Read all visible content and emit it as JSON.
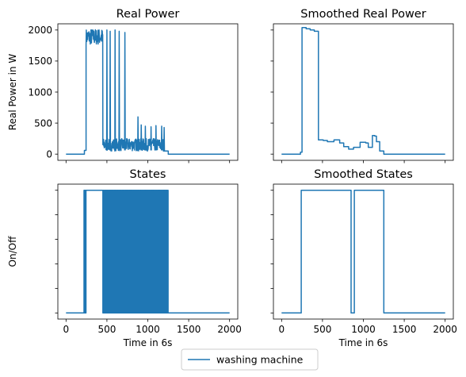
{
  "legend": {
    "label": "washing machine",
    "position": "bottom-center",
    "color": "#1f77b4"
  },
  "chart_data": [
    {
      "id": "real_power",
      "type": "line",
      "title": "Real Power",
      "xlabel": "",
      "ylabel": "Real Power in W",
      "xlim": [
        -100,
        2100
      ],
      "ylim": [
        -100,
        2100
      ],
      "xticks": [
        0,
        500,
        1000,
        1500,
        2000
      ],
      "yticks": [
        0,
        500,
        1000,
        1500,
        2000
      ],
      "ytick_labels": [
        "0",
        "500",
        "1000",
        "1500",
        "2000"
      ],
      "xtick_labels_visible": false,
      "ytick_labels_visible": true,
      "series": [
        {
          "name": "washing machine",
          "color": "#1f77b4",
          "regions": [
            {
              "x": [
                0,
                225
              ],
              "level": 0
            },
            {
              "x": [
                225,
                245
              ],
              "level": 60
            },
            {
              "x": [
                245,
                450
              ],
              "pattern": "noise",
              "min": 1760,
              "max": 2020
            },
            {
              "x": [
                450,
                1200
              ],
              "pattern": "noise",
              "min": 50,
              "max": 250
            },
            {
              "x": [
                1200,
                1250
              ],
              "level": 50
            },
            {
              "x": [
                1250,
                2000
              ],
              "level": 0
            }
          ],
          "spikes": [
            {
              "x": 500,
              "y": 2000
            },
            {
              "x": 540,
              "y": 1980
            },
            {
              "x": 600,
              "y": 2000
            },
            {
              "x": 650,
              "y": 1980
            },
            {
              "x": 720,
              "y": 1960
            },
            {
              "x": 880,
              "y": 600
            },
            {
              "x": 920,
              "y": 470
            },
            {
              "x": 970,
              "y": 450
            },
            {
              "x": 1040,
              "y": 440
            },
            {
              "x": 1100,
              "y": 460
            },
            {
              "x": 1170,
              "y": 450
            },
            {
              "x": 1200,
              "y": 430
            }
          ]
        }
      ]
    },
    {
      "id": "smoothed_real_power",
      "type": "line",
      "title": "Smoothed Real Power",
      "xlabel": "",
      "ylabel": "",
      "xlim": [
        -100,
        2100
      ],
      "ylim": [
        -100,
        2100
      ],
      "xticks": [
        0,
        500,
        1000,
        1500,
        2000
      ],
      "yticks": [
        0,
        500,
        1000,
        1500,
        2000
      ],
      "xtick_labels_visible": false,
      "ytick_labels_visible": false,
      "series": [
        {
          "name": "washing machine",
          "color": "#1f77b4",
          "x": [
            0,
            230,
            230,
            250,
            250,
            300,
            300,
            350,
            350,
            400,
            400,
            450,
            450,
            510,
            510,
            560,
            560,
            640,
            640,
            710,
            710,
            760,
            760,
            820,
            820,
            880,
            880,
            960,
            960,
            1030,
            1030,
            1060,
            1060,
            1110,
            1110,
            1140,
            1140,
            1160,
            1160,
            1200,
            1200,
            1250,
            1250,
            2000
          ],
          "y": [
            0,
            0,
            30,
            30,
            2040,
            2040,
            2020,
            2020,
            2000,
            2000,
            1980,
            1980,
            230,
            230,
            220,
            220,
            200,
            200,
            230,
            230,
            180,
            180,
            120,
            120,
            80,
            80,
            110,
            110,
            190,
            190,
            180,
            180,
            110,
            110,
            300,
            300,
            290,
            290,
            200,
            200,
            50,
            50,
            0,
            0
          ]
        }
      ]
    },
    {
      "id": "states",
      "type": "line",
      "title": "States",
      "xlabel": "Time in 6s",
      "ylabel": "On/Off",
      "xlim": [
        -100,
        2100
      ],
      "ylim": [
        -0.05,
        1.05
      ],
      "xticks": [
        0,
        500,
        1000,
        1500,
        2000
      ],
      "yticks": [
        0,
        0.2,
        0.4,
        0.6,
        0.8,
        1.0
      ],
      "xtick_labels": [
        "0",
        "500",
        "1000",
        "1500",
        "2000"
      ],
      "xtick_labels_visible": true,
      "ytick_labels_visible": false,
      "series": [
        {
          "name": "washing machine",
          "color": "#1f77b4",
          "regions": [
            {
              "x": [
                0,
                220
              ],
              "level": 0
            },
            {
              "x": [
                220,
                245
              ],
              "pattern": "switch",
              "density": 0.5
            },
            {
              "x": [
                245,
                450
              ],
              "level": 1
            },
            {
              "x": [
                450,
                800
              ],
              "pattern": "switch",
              "density": 0.15
            },
            {
              "x": [
                800,
                1200
              ],
              "pattern": "switch",
              "density": 0.5
            },
            {
              "x": [
                1200,
                1250
              ],
              "pattern": "switch",
              "density": 0.3
            },
            {
              "x": [
                1250,
                2000
              ],
              "level": 0
            }
          ]
        }
      ]
    },
    {
      "id": "smoothed_states",
      "type": "line",
      "title": "Smoothed States",
      "xlabel": "Time in 6s",
      "ylabel": "",
      "xlim": [
        -100,
        2100
      ],
      "ylim": [
        -0.05,
        1.05
      ],
      "xticks": [
        0,
        500,
        1000,
        1500,
        2000
      ],
      "yticks": [
        0,
        0.2,
        0.4,
        0.6,
        0.8,
        1.0
      ],
      "xtick_labels": [
        "0",
        "500",
        "1000",
        "1500",
        "2000"
      ],
      "xtick_labels_visible": true,
      "ytick_labels_visible": false,
      "series": [
        {
          "name": "washing machine",
          "color": "#1f77b4",
          "x": [
            0,
            240,
            240,
            850,
            850,
            890,
            890,
            1250,
            1250,
            2000
          ],
          "y": [
            0,
            0,
            1,
            1,
            0,
            0,
            1,
            1,
            0,
            0
          ]
        }
      ]
    }
  ]
}
